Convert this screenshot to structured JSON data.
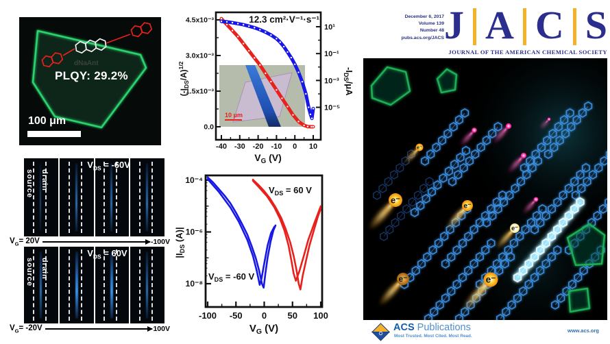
{
  "colors": {
    "navy": "#2b2e8d",
    "gold": "#f3b229",
    "figure_red": "#e8211d",
    "figure_blue": "#1717e8",
    "crystal_green": "#2bd36d",
    "acs_blue": "#135daa",
    "acs_light_blue": "#4f8fcc"
  },
  "fluor_panel": {
    "plqy": "PLQY: 29.2%",
    "scale_bar": "100 μm",
    "watermark": "dNaAnt"
  },
  "device_panel": {
    "rows": [
      {
        "vds_html": "V<sub>DS</sub> = -60V",
        "vg_start_html": "V<sub>G</sub>= 20V",
        "vg_end": "-100V",
        "labels": [
          "source",
          "drain"
        ]
      },
      {
        "vds_html": "V<sub>DS</sub> = 60V",
        "vg_start_html": "V<sub>G</sub>= -20V",
        "vg_end": "100V",
        "labels": [
          "source",
          "drain"
        ]
      }
    ]
  },
  "chart_data": [
    {
      "type": "line",
      "title": "12.3 cm²·V⁻¹·s⁻¹",
      "xlabel_parts": [
        [
          "n",
          "V"
        ],
        [
          "sub",
          "G"
        ],
        [
          "n",
          " (V)"
        ]
      ],
      "x_ticks": [
        -40,
        -30,
        -20,
        -10,
        0,
        10
      ],
      "x_minor_step": 5,
      "xlim": [
        -43,
        13
      ],
      "y_left": {
        "label_parts": [
          [
            "n",
            "(-I"
          ],
          [
            "sub",
            "DS"
          ],
          [
            "n",
            "/A)"
          ],
          [
            "sup",
            "1/2"
          ]
        ],
        "ticks": [
          {
            "v": 0.0,
            "label": "0.0"
          },
          {
            "v": 0.0015,
            "label": "1.5x10⁻³"
          },
          {
            "v": 0.003,
            "label": "3.0x10⁻³"
          },
          {
            "v": 0.0045,
            "label": "4.5x10⁻³"
          }
        ],
        "lim": [
          0,
          0.0052
        ]
      },
      "y_right": {
        "label_parts": [
          [
            "n",
            "-I"
          ],
          [
            "sub",
            "DS"
          ],
          [
            "n",
            "/μA"
          ]
        ],
        "scale": "log",
        "ticks": [
          {
            "exp": 1,
            "label": "10¹"
          },
          {
            "exp": -1,
            "label": "10⁻¹"
          },
          {
            "exp": -3,
            "label": "10⁻³"
          },
          {
            "exp": -5,
            "label": "10⁻⁵"
          }
        ]
      },
      "series": [
        {
          "name": "sqrt-drain-current",
          "color": "#e8211d",
          "axis": "left",
          "points": [
            [
              -40,
              0.00455
            ],
            [
              -37,
              0.0043
            ],
            [
              -34,
              0.00405
            ],
            [
              -31,
              0.0038
            ],
            [
              -28,
              0.0035
            ],
            [
              -25,
              0.0032
            ],
            [
              -22,
              0.0029
            ],
            [
              -19,
              0.0026
            ],
            [
              -16,
              0.00225
            ],
            [
              -13,
              0.0019
            ],
            [
              -10,
              0.00155
            ],
            [
              -7,
              0.0012
            ],
            [
              -4,
              0.00085
            ],
            [
              -1,
              0.0005
            ],
            [
              2,
              0.00022
            ],
            [
              5,
              6e-05
            ],
            [
              7,
              1e-05
            ],
            [
              9,
              0.0
            ],
            [
              10,
              0.0
            ]
          ]
        },
        {
          "name": "log-drain-current",
          "color": "#1717e8",
          "axis": "right",
          "points": [
            [
              -40,
              25
            ],
            [
              -37,
              23
            ],
            [
              -34,
              20
            ],
            [
              -31,
              17
            ],
            [
              -28,
              14
            ],
            [
              -25,
              11
            ],
            [
              -22,
              8.5
            ],
            [
              -19,
              6
            ],
            [
              -16,
              4
            ],
            [
              -13,
              2.4
            ],
            [
              -10,
              1.3
            ],
            [
              -8,
              0.7
            ],
            [
              -6,
              0.33
            ],
            [
              -4,
              0.13
            ],
            [
              -2,
              0.05
            ],
            [
              0,
              0.016
            ],
            [
              2,
              0.004
            ],
            [
              4,
              0.0008
            ],
            [
              6,
              0.0001
            ],
            [
              7.5,
              1e-05
            ],
            [
              8.5,
              3e-06
            ],
            [
              9.3,
              1.5e-06
            ],
            [
              10,
              8e-06
            ]
          ]
        }
      ],
      "inset": {
        "scale_bar_label": "10 μm"
      }
    },
    {
      "type": "line",
      "xlabel_parts": [
        [
          "n",
          "V"
        ],
        [
          "sub",
          "G"
        ],
        [
          "n",
          " (V)"
        ]
      ],
      "ylabel_parts": [
        [
          "n",
          "|I"
        ],
        [
          "sub",
          "DS"
        ],
        [
          "n",
          " (A)|"
        ]
      ],
      "x_ticks": [
        -100,
        -50,
        0,
        50,
        100
      ],
      "x_minor_step": 25,
      "y_ticks": [
        {
          "exp": -4,
          "label": "10⁻⁴"
        },
        {
          "exp": -6,
          "label": "10⁻⁶"
        },
        {
          "exp": -8,
          "label": "10⁻⁸"
        }
      ],
      "annotations": [
        {
          "parts": [
            [
              "n",
              "V"
            ],
            [
              "sub",
              "DS"
            ],
            [
              "n",
              " = 60 V"
            ]
          ]
        },
        {
          "parts": [
            [
              "n",
              "V"
            ],
            [
              "sub",
              "DS"
            ],
            [
              "n",
              " = -60 V"
            ]
          ]
        }
      ],
      "series": [
        {
          "name": "VDS-neg-60",
          "color": "#1717e8",
          "branches": [
            [
              [
                -100,
                0.00013
              ],
              [
                -90,
                8e-05
              ],
              [
                -80,
                4.5e-05
              ],
              [
                -70,
                2.5e-05
              ],
              [
                -60,
                1.3e-05
              ],
              [
                -50,
                5.6e-06
              ],
              [
                -40,
                2.2e-06
              ],
              [
                -30,
                8e-07
              ],
              [
                -22,
                2.8e-07
              ],
              [
                -15,
                1e-07
              ],
              [
                -9,
                3.2e-08
              ],
              [
                -4,
                1e-08
              ],
              [
                -1,
                7e-09
              ],
              [
                2,
                2.5e-08
              ],
              [
                6,
                1e-07
              ],
              [
                11,
                4e-07
              ],
              [
                16,
                1.1e-06
              ],
              [
                20,
                1.8e-06
              ]
            ],
            [
              [
                -100,
                0.00011
              ],
              [
                -80,
                3.5e-05
              ],
              [
                -60,
                9e-06
              ],
              [
                -45,
                2.5e-06
              ],
              [
                -30,
                5e-07
              ],
              [
                -20,
                1.2e-07
              ],
              [
                -13,
                3e-08
              ],
              [
                -8,
                9e-09
              ],
              [
                -5,
                1.5e-08
              ],
              [
                0,
                6e-08
              ],
              [
                6,
                3e-07
              ],
              [
                12,
                9e-07
              ],
              [
                18,
                1.6e-06
              ]
            ]
          ]
        },
        {
          "name": "VDS-pos-60",
          "color": "#e8211d",
          "branches": [
            [
              [
                -20,
                0.000105
              ],
              [
                -10,
                6.5e-05
              ],
              [
                0,
                3.8e-05
              ],
              [
                10,
                2e-05
              ],
              [
                20,
                9e-06
              ],
              [
                30,
                3.5e-06
              ],
              [
                38,
                1.3e-06
              ],
              [
                46,
                4e-07
              ],
              [
                52,
                1.2e-07
              ],
              [
                57,
                3.5e-08
              ],
              [
                61,
                1e-08
              ],
              [
                64,
                6e-09
              ],
              [
                68,
                2e-08
              ],
              [
                74,
                8e-08
              ],
              [
                80,
                3e-07
              ],
              [
                88,
                1.2e-06
              ],
              [
                95,
                4e-06
              ],
              [
                100,
                8e-06
              ]
            ],
            [
              [
                -20,
                9.5e-05
              ],
              [
                -8,
                5e-05
              ],
              [
                5,
                2.4e-05
              ],
              [
                18,
                9e-06
              ],
              [
                28,
                3.2e-06
              ],
              [
                36,
                1.1e-06
              ],
              [
                43,
                3e-07
              ],
              [
                48,
                8e-08
              ],
              [
                52,
                2.5e-08
              ],
              [
                56,
                1.3e-08
              ],
              [
                62,
                3e-08
              ],
              [
                70,
                1.2e-07
              ],
              [
                78,
                5e-07
              ],
              [
                88,
                2e-06
              ],
              [
                100,
                1e-05
              ]
            ]
          ]
        }
      ]
    }
  ],
  "cover": {
    "issue_lines": [
      "December 6, 2017",
      "Volume 139",
      "Number 48",
      "pubs.acs.org/JACS"
    ],
    "letters": [
      "J",
      "A",
      "C",
      "S"
    ],
    "subtitle": "JOURNAL OF THE AMERICAN CHEMICAL SOCIETY",
    "electron": "e⁻",
    "footer": {
      "acs": "ACS",
      "publications": "Publications",
      "tagline": "Most Trusted. Most Cited. Most Read.",
      "url": "www.acs.org"
    }
  }
}
